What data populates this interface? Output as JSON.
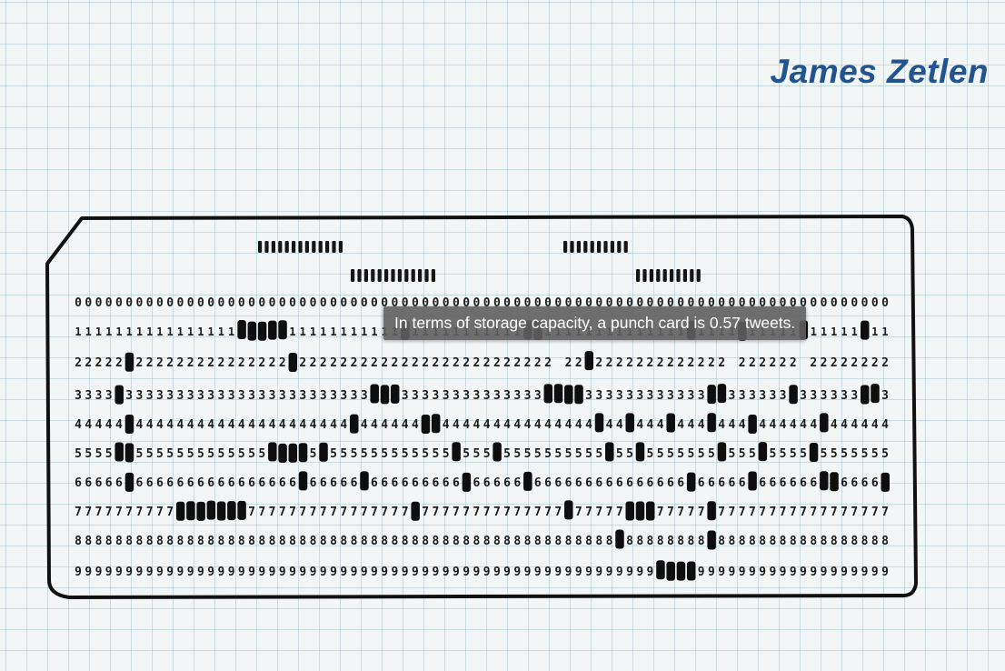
{
  "author": "James Zetlen",
  "tooltip": "In terms of storage capacity, a punch card is 0.57 tweets.",
  "colors": {
    "author": "#22548f",
    "ink": "#111111",
    "grid": "#96bec8",
    "tooltip_bg": "#5f5f5f"
  },
  "punch_card": {
    "row_digits": [
      "0",
      "1",
      "2",
      "3",
      "4",
      "5",
      "6",
      "7",
      "8",
      "9"
    ]
  }
}
